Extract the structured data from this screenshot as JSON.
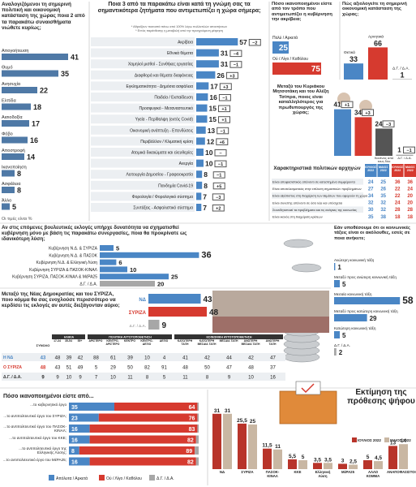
{
  "feelings": {
    "title": "Αναλογιζόμενοι τη σημερινή πολιτική και οικονομική κατάσταση της χώρας ποια 2 από τα παρακάτω συναισθήματα νιώθετε κυρίως;",
    "items": [
      {
        "label": "Απογοήτευση",
        "value": 41
      },
      {
        "label": "Θυμό",
        "value": 35
      },
      {
        "label": "Ανησυχία",
        "value": 22
      },
      {
        "label": "Ελπίδα",
        "value": 18
      },
      {
        "label": "Αισιοδοξία",
        "value": 17
      },
      {
        "label": "Φόβο",
        "value": 16
      },
      {
        "label": "Αποστροφή",
        "value": 14
      },
      {
        "label": "Ικανοποίηση",
        "value": 8
      },
      {
        "label": "Ασφάλεια",
        "value": 8
      },
      {
        "label": "Άλλο",
        "value": 5
      }
    ],
    "note": "Οι τιμές είναι %"
  },
  "issues": {
    "title": "Ποια 3 από τα παρακάτω είναι κατά τη γνώμη σας τα σημαντικότερα ζητήματα που αντιμετωπίζει η χώρα σήμερα;",
    "notes": [
      "* Αθροίζουν ποσοστά πάνω από 100% λόγω πολλαπλών απαντήσεων",
      "* Εντός παρένθεσης η μεταβολή από την προηγούμενη μέτρηση"
    ],
    "items": [
      {
        "label": "Ακρίβεια",
        "value": 57,
        "change": "−2"
      },
      {
        "label": "Εθνικά θέματα",
        "value": 31,
        "change": "−4"
      },
      {
        "label": "Χαμηλοί μισθοί - Συνθήκες εργασίας",
        "value": 31,
        "change": "−1"
      },
      {
        "label": "Διαφθορά και θέματα διαφάνειας",
        "value": 26,
        "change": "+3"
      },
      {
        "label": "Εγκληματικότητα - Δημόσια ασφάλεια",
        "value": 17,
        "change": "+3"
      },
      {
        "label": "Παιδεία / Εκπαίδευση",
        "value": 16,
        "change": "−1"
      },
      {
        "label": "Προσφυγικό - Μεταναστευτικό",
        "value": 15,
        "change": "+1"
      },
      {
        "label": "Υγεία - Περίθαλψη (εκτός Covid)",
        "value": 15,
        "change": "+1"
      },
      {
        "label": "Οικονομική ανάπτυξη - Επενδύσεις",
        "value": 13,
        "change": "−1"
      },
      {
        "label": "Περιβάλλον / Κλιματική κρίση",
        "value": 12,
        "change": "+6"
      },
      {
        "label": "Ατομικά δικαιώματα και ελευθερίες",
        "value": 10,
        "change": "–"
      },
      {
        "label": "Ανεργία",
        "value": 10,
        "change": "−1"
      },
      {
        "label": "Λειτουργία Δημοσίου - Γραφειοκρατία",
        "value": 8,
        "change": "−1"
      },
      {
        "label": "Πανδημία Covid-19",
        "value": 8,
        "change": "+5"
      },
      {
        "label": "Φορολογία / Φορολογικό σύστημα",
        "value": 7,
        "change": "−3"
      },
      {
        "label": "Συντάξεις - Ασφαλιστικό σύστημα",
        "value": 7,
        "change": "+2"
      }
    ]
  },
  "prices": {
    "title": "Πόσο ικανοποιημένοι είστε από τον τρόπο που αντιμετωπίζει η κυβέρνηση την ακρίβεια;",
    "items": [
      {
        "label": "Πολύ / Αρκετά",
        "value": 25
      },
      {
        "label": "Ού / Λίγο / Καθόλου",
        "value": 75
      }
    ]
  },
  "economy": {
    "title": "Πώς αξιολογείτε τη σημερινή οικονομική κατάσταση της χώρας;",
    "items": [
      {
        "label": "Θετικά",
        "value": 33
      },
      {
        "label": "Αρνητικά",
        "value": 66
      },
      {
        "label": "Δ.Γ. / Δ.Α.",
        "value": 1
      }
    ]
  },
  "pm": {
    "title": "Μεταξύ του Κυριάκου Μητσοτάκη και του Αλέξη Τσίπρα, ποιος είναι καταλληλότερος για πρωθυπουργός της χώρας;",
    "items": [
      {
        "value": 41,
        "change": "+1"
      },
      {
        "value": 34,
        "change": "+3"
      },
      {
        "label": "Κανένας από τους δύο",
        "value": 24,
        "change": "−3"
      },
      {
        "label": "Δ.Γ. / Δ.Α.",
        "value": 1,
        "change": "−1"
      }
    ]
  },
  "traits": {
    "title": "Χαρακτηριστικά πολιτικών αρχηγών",
    "columns": [
      "ΙΟΥΛΙΟΣ 2022",
      "ΜΑΙΟΣ 2022",
      "ΙΟΥΛΙΟΣ 2022",
      "ΜΑΙΟΣ 2022"
    ],
    "rows": [
      {
        "label": "Είναι αποφασιστικός απέναντι σε κατεστημένα συμφέροντα",
        "values": [
          24,
          25,
          36,
          36
        ]
      },
      {
        "label": "Είναι αποτελεσματικός στην επίλυση σημαντικών προβλημάτων",
        "values": [
          27,
          26,
          22,
          24
        ]
      },
      {
        "label": "Είναι αξιόπιστος στη διαχείριση των θεμάτων που αφορούν τη χώρα",
        "values": [
          34,
          35,
          22,
          20
        ]
      },
      {
        "label": "Είναι συνεπής απέναντι σε όσα λέει και υπόσχεται",
        "values": [
          32,
          32,
          24,
          20
        ]
      },
      {
        "label": "Συνειδητοποιεί τα προβλήματα και τις ανάγκες της κοινωνίας",
        "values": [
          30,
          32,
          28,
          28
        ]
      },
      {
        "label": "Είναι ικανός στη διαχείριση κρίσεων",
        "values": [
          35,
          38,
          18,
          18
        ]
      }
    ]
  },
  "coalition": {
    "title": "Αν στις επόμενες βουλευτικές εκλογές υπήρχε δυνατότητα να σχηματισθεί κυβέρνηση μόνο με βάση τις παρακάτω συνεργασίες, ποια θα προκρίνατε ως ιδανικότερη λύση;",
    "items": [
      {
        "label": "Κυβέρνηση Ν.Δ. & ΣΥΡΙΖΑ",
        "value": 5
      },
      {
        "label": "Κυβέρνηση Ν.Δ. & ΠΑΣΟΚ",
        "value": 36
      },
      {
        "label": "Κυβέρνηση Ν.Δ. & Ελληνική Λύση",
        "value": 6
      },
      {
        "label": "Κυβέρνηση ΣΥΡΙΖΑ & ΠΑΣΟΚ-ΚΙΝΑΛ",
        "value": 10
      },
      {
        "label": "Κυβέρνηση ΣΥΡΙΖΑ, ΠΑΣΟΚ-ΚΙΝΑΛ & ΜέΡΑ25",
        "value": 25
      },
      {
        "label": "Δ.Γ. / Δ.Α.",
        "value": 20
      }
    ]
  },
  "class": {
    "title": "Εάν υποθέσουμε ότι οι κοινωνικές τάξεις είναι οι ακόλουθες, εσείς σε ποια ανήκετε;",
    "items": [
      {
        "label": "Ανώτερη κοινωνική τάξη",
        "value": 1
      },
      {
        "label": "Μεταξύ προς ανώτερη κοινωνική τάξη",
        "value": 5
      },
      {
        "label": "Μεσαία κοινωνική τάξη",
        "value": 58
      },
      {
        "label": "Μεταξύ προς κατώτερη κοινωνική τάξη",
        "value": 29
      },
      {
        "label": "Κατώτερη κοινωνική τάξη",
        "value": 5
      },
      {
        "label": "Δ.Γ. / Δ.Α.",
        "value": 2
      }
    ]
  },
  "annoy": {
    "title": "Μεταξύ της Νέας Δημοκρατίας και του ΣΥΡΙΖΑ, ποιο κόμμα θα σας ενοχλούσε περισσότερο να κερδίσει τις εκλογές αν αυτές διεξάγονταν αύριο;",
    "items": [
      {
        "label": "ΝΔ",
        "value": 43
      },
      {
        "label": "ΣΥΡΙΖΑ",
        "value": 48
      },
      {
        "label": "Δ.Γ. / Δ.Α.",
        "value": 9
      }
    ],
    "table": {
      "total_label": "ΣΥΝΟΛΟ",
      "groups": [
        {
          "label": "ΗΛΙΚΙΑ",
          "columns": [
            "17-34",
            "35-54",
            "55+"
          ]
        },
        {
          "label": "ΠΟΛΙΤΙΚΗ ΑΥΤΟΤΟΠΟΘΕΤΗΣΗ",
          "columns": [
            "ΑΡΙΣΤΕΡΟ",
            "ΚΕΝΤΡΟ-ΑΡΙΣΤΕΡΟ",
            "ΚΕΝΤΡΟ",
            "ΚΕΝΤΡΟ-ΔΕΞΙΟ",
            "ΔΕΞΙΟ"
          ]
        },
        {
          "label": "ΚΟΙΝΩΝΙΚΗ ΑΥΤΟΤΟΠΟΘΕΤΗΣΗ",
          "columns": [
            "ΚΑΤΩΤΕΡΗ ΤΑΞΗ",
            "ΚΑΤΩΤΕΡΗ ΜΕΣΑΙΑ ΤΑΞΗ",
            "ΜΕΣΑΙΑ ΤΑΞΗ",
            "ΑΝΩΤΕΡΗ ΜΕΣΑΙΑ ΤΑΞΗ",
            "ΑΝΩΤΕΡΗ ΤΑΞΗ"
          ]
        }
      ],
      "rows": [
        {
          "label": "Η ΝΔ",
          "values": [
            43,
            48,
            39,
            42,
            88,
            61,
            39,
            10,
            4,
            41,
            42,
            44,
            42,
            47
          ]
        },
        {
          "label": "Ο ΣΥΡΙΖΑ",
          "values": [
            48,
            43,
            51,
            49,
            5,
            29,
            50,
            82,
            91,
            48,
            50,
            47,
            48,
            37
          ]
        },
        {
          "label": "Δ.Γ. / Δ.Α.",
          "values": [
            9,
            9,
            10,
            9,
            7,
            10,
            11,
            8,
            5,
            11,
            8,
            9,
            10,
            16
          ]
        }
      ]
    }
  },
  "satisfaction": {
    "title": "Πόσο ικανοποιημένοι είστε από...",
    "categories": [
      "...το κυβερνητικό έργο",
      "...το αντιπολιτευτικό έργο του ΣΥΡΙΖΑ;",
      "...το αντιπολιτευτικό έργο του ΠΑΣΟΚ-ΚΙΝΑΛ;",
      "...το αντιπολιτευτικό έργο του ΚΚΕ;",
      "...το αντιπολιτευτικό έργο της Ελληνικής Λύσης;",
      "...το αντιπολιτευτικό έργο του ΜέΡΑ25;"
    ],
    "series": [
      {
        "name": "Απόλυτα / Αρκετά",
        "color": "#4a86c5",
        "values": [
          35,
          23,
          16,
          16,
          8,
          16
        ]
      },
      {
        "name": "Ού / Λίγο / Καθόλου",
        "color": "#d63a2f",
        "values": [
          64,
          76,
          83,
          82,
          89,
          82
        ]
      },
      {
        "name": "Δ.Γ. / Δ.Α.",
        "color": "#a7a7a7",
        "values": [
          1,
          1,
          1,
          2,
          3,
          2
        ]
      }
    ]
  },
  "vote": {
    "title": "Εκτίμηση της πρόθεσης ψήφου",
    "categories": [
      "ΝΔ",
      "ΣΥΡΙΖΑ",
      "ΠΑΣΟΚ-ΚΙΝΑΛ",
      "ΚΚΕ",
      "Ελληνική Λύση",
      "ΜέΡΑ25",
      "ΑΛΛΟ ΚΟΜΜΑ",
      "ΑΝΑΠΟΦΑΣΙΣΤΟΙ"
    ],
    "series": [
      {
        "name": "ΙΟΥΛΙΟΣ 2022",
        "color": "#b8342a",
        "values": [
          31,
          25.5,
          11.5,
          5.5,
          3.5,
          3,
          5,
          13
        ],
        "value_labels": [
          "31",
          "25,5",
          "11,5",
          "5,5",
          "3,5",
          "3",
          "5",
          "13"
        ]
      },
      {
        "name": "ΜΑΙΟΣ 2022",
        "color": "#c9b7a3",
        "values": [
          31,
          25,
          11,
          5,
          3.5,
          2.5,
          4.5,
          14
        ],
        "value_labels": [
          "31",
          "25",
          "11",
          "5",
          "3,5",
          "2,5",
          "4,5",
          "14"
        ]
      }
    ]
  }
}
